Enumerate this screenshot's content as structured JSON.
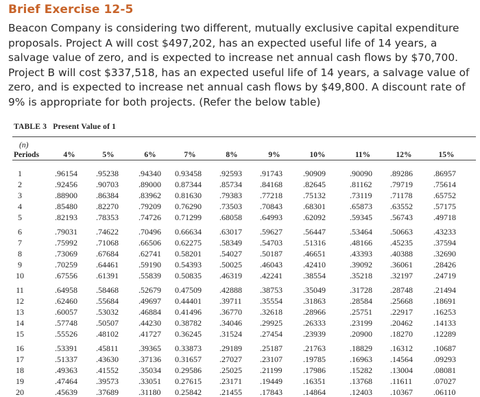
{
  "exercise": {
    "title": "Brief Exercise 12-5",
    "problem_text": "Beacon Company is considering two different, mutually exclusive capital expenditure proposals. Project A will cost $497,202, has an expected useful life of 14 years, a salvage value of zero, and is expected to increase net annual cash flows by $70,700. Project B will cost $337,518, has an expected useful life of 14 years, a salvage value of zero, and is expected to increase net annual cash flows by $49,800. A discount rate of 9% is appropriate for both projects. (Refer the below table)"
  },
  "table": {
    "number_label": "TABLE 3",
    "caption": "Present Value of 1",
    "n_label": "(n)",
    "periods_label": "Periods",
    "rates": [
      "4%",
      "5%",
      "6%",
      "7%",
      "8%",
      "9%",
      "10%",
      "11%",
      "12%",
      "15%"
    ],
    "periods": [
      "1",
      "2",
      "3",
      "4",
      "5",
      "6",
      "7",
      "8",
      "9",
      "10",
      "11",
      "12",
      "13",
      "14",
      "15",
      "16",
      "17",
      "18",
      "19",
      "20"
    ],
    "rows": [
      [
        ".96154",
        ".95238",
        ".94340",
        "0.93458",
        ".92593",
        ".91743",
        ".90909",
        ".90090",
        ".89286",
        ".86957"
      ],
      [
        ".92456",
        ".90703",
        ".89000",
        "0.87344",
        ".85734",
        ".84168",
        ".82645",
        ".81162",
        ".79719",
        ".75614"
      ],
      [
        ".88900",
        ".86384",
        ".83962",
        "0.81630",
        ".79383",
        ".77218",
        ".75132",
        ".73119",
        ".71178",
        ".65752"
      ],
      [
        ".85480",
        ".82270",
        ".79209",
        "0.76290",
        ".73503",
        ".70843",
        ".68301",
        ".65873",
        ".63552",
        ".57175"
      ],
      [
        ".82193",
        ".78353",
        ".74726",
        "0.71299",
        ".68058",
        ".64993",
        ".62092",
        ".59345",
        ".56743",
        ".49718"
      ],
      [
        ".79031",
        ".74622",
        ".70496",
        "0.66634",
        ".63017",
        ".59627",
        ".56447",
        ".53464",
        ".50663",
        ".43233"
      ],
      [
        ".75992",
        ".71068",
        ".66506",
        "0.62275",
        ".58349",
        ".54703",
        ".51316",
        ".48166",
        ".45235",
        ".37594"
      ],
      [
        ".73069",
        ".67684",
        ".62741",
        "0.58201",
        ".54027",
        ".50187",
        ".46651",
        ".43393",
        ".40388",
        ".32690"
      ],
      [
        ".70259",
        ".64461",
        ".59190",
        "0.54393",
        ".50025",
        ".46043",
        ".42410",
        ".39092",
        ".36061",
        ".28426"
      ],
      [
        ".67556",
        ".61391",
        ".55839",
        "0.50835",
        ".46319",
        ".42241",
        ".38554",
        ".35218",
        ".32197",
        ".24719"
      ],
      [
        ".64958",
        ".58468",
        ".52679",
        "0.47509",
        ".42888",
        ".38753",
        ".35049",
        ".31728",
        ".28748",
        ".21494"
      ],
      [
        ".62460",
        ".55684",
        ".49697",
        "0.44401",
        ".39711",
        ".35554",
        ".31863",
        ".28584",
        ".25668",
        ".18691"
      ],
      [
        ".60057",
        ".53032",
        ".46884",
        "0.41496",
        ".36770",
        ".32618",
        ".28966",
        ".25751",
        ".22917",
        ".16253"
      ],
      [
        ".57748",
        ".50507",
        ".44230",
        "0.38782",
        ".34046",
        ".29925",
        ".26333",
        ".23199",
        ".20462",
        ".14133"
      ],
      [
        ".55526",
        ".48102",
        ".41727",
        "0.36245",
        ".31524",
        ".27454",
        ".23939",
        ".20900",
        ".18270",
        ".12289"
      ],
      [
        ".53391",
        ".45811",
        ".39365",
        "0.33873",
        ".29189",
        ".25187",
        ".21763",
        ".18829",
        ".16312",
        ".10687"
      ],
      [
        ".51337",
        ".43630",
        ".37136",
        "0.31657",
        ".27027",
        ".23107",
        ".19785",
        ".16963",
        ".14564",
        ".09293"
      ],
      [
        ".49363",
        ".41552",
        ".35034",
        "0.29586",
        ".25025",
        ".21199",
        ".17986",
        ".15282",
        ".13004",
        ".08081"
      ],
      [
        ".47464",
        ".39573",
        ".33051",
        "0.27615",
        ".23171",
        ".19449",
        ".16351",
        ".13768",
        ".11611",
        ".07027"
      ],
      [
        ".45639",
        ".37689",
        ".31180",
        "0.25842",
        ".21455",
        ".17843",
        ".14864",
        ".12403",
        ".10367",
        ".06110"
      ]
    ]
  }
}
